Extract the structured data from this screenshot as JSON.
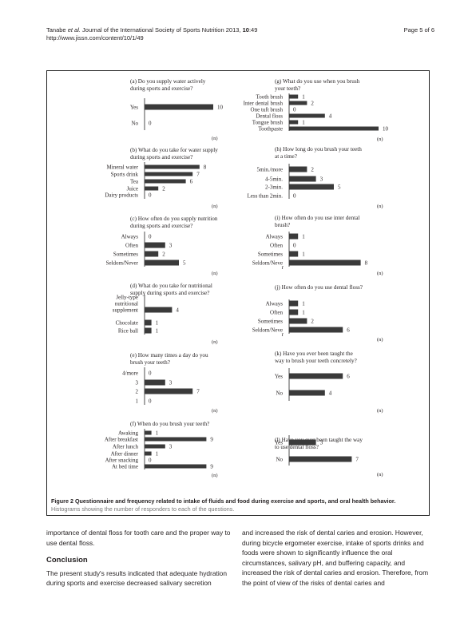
{
  "header": {
    "citation_authors": "Tanabe ",
    "citation_etal": "et al.",
    "citation_journal": " Journal of the International Society of Sports Nutrition",
    "citation_year": " 2013, ",
    "citation_volume": "10",
    "citation_article": ":49",
    "url": "http://www.jissn.com/content/10/1/49",
    "page": "Page 5 of 6"
  },
  "figure": {
    "caption_title": "Figure 2 Questionnaire and frequency related to intake of fluids and food during exercise and sports, and oral health behavior.",
    "caption_sub": "Histograms showing the number of responders to each of the questions.",
    "unit_label": "(n)",
    "colors": {
      "bar": "#3a3a3a",
      "axis": "#222222"
    }
  },
  "chart_data": [
    {
      "type": "bar",
      "title": [
        "(a) Do you supply water actively",
        "during sports and exercise?"
      ],
      "categories": [
        [
          "Yes"
        ],
        [
          "No"
        ]
      ],
      "values": [
        10,
        0
      ],
      "xlabel": "(n)",
      "xlim": [
        0,
        10
      ]
    },
    {
      "type": "bar",
      "title": [
        "(b) What do you take for water supply",
        "during sports and exercise?"
      ],
      "categories": [
        [
          "Mineral water"
        ],
        [
          "Sports drink"
        ],
        [
          "Tea"
        ],
        [
          "Juice"
        ],
        [
          "Dairy products"
        ]
      ],
      "values": [
        8,
        7,
        6,
        2,
        0
      ],
      "xlabel": "(n)",
      "xlim": [
        0,
        10
      ]
    },
    {
      "type": "bar",
      "title": [
        "(c) How often do you supply nutrition",
        "during sports and exercise?"
      ],
      "categories": [
        [
          "Always"
        ],
        [
          "Often"
        ],
        [
          "Sometimes"
        ],
        [
          "Seldom/Never"
        ]
      ],
      "values": [
        0,
        3,
        2,
        5
      ],
      "xlabel": "(n)",
      "xlim": [
        0,
        10
      ]
    },
    {
      "type": "bar",
      "title": [
        "(d) What do you take for nutritional",
        "supply during sports and exercise?"
      ],
      "categories": [
        [
          "Jelly-type",
          "nutritional",
          "supplement"
        ],
        [
          "Chocolate"
        ],
        [
          "Rice ball"
        ]
      ],
      "values": [
        4,
        1,
        1
      ],
      "xlabel": "(n)",
      "xlim": [
        0,
        10
      ]
    },
    {
      "type": "bar",
      "title": [
        "(e) How many times a day do you",
        "brush your teeth?"
      ],
      "categories": [
        [
          "4/more"
        ],
        [
          "3"
        ],
        [
          "2"
        ],
        [
          "1"
        ]
      ],
      "values": [
        0,
        3,
        7,
        0
      ],
      "xlabel": "(n)",
      "xlim": [
        0,
        10
      ]
    },
    {
      "type": "bar",
      "title": [
        "(f) When do you brush your teeth?"
      ],
      "categories": [
        [
          "Awaking"
        ],
        [
          "After breakfast"
        ],
        [
          "After lunch"
        ],
        [
          "After dinner"
        ],
        [
          "After snacking"
        ],
        [
          "At bed time"
        ]
      ],
      "values": [
        1,
        9,
        3,
        1,
        0,
        9
      ],
      "xlabel": "(n)",
      "xlim": [
        0,
        10
      ]
    },
    {
      "type": "bar",
      "title": [
        "(g) What do you use when you brush",
        "your teeth?"
      ],
      "categories": [
        [
          "Tooth brush"
        ],
        [
          "Inter dental brush"
        ],
        [
          "One tuft brush"
        ],
        [
          "Dental floss"
        ],
        [
          "Tongue brush"
        ],
        [
          "Toothpaste"
        ]
      ],
      "values": [
        1,
        2,
        0,
        4,
        1,
        10
      ],
      "xlabel": "(n)",
      "xlim": [
        0,
        10
      ]
    },
    {
      "type": "bar",
      "title": [
        "(h) How long do you brush your teeth",
        "at a time?"
      ],
      "categories": [
        [
          "5min./more"
        ],
        [
          "4-5min."
        ],
        [
          "2-3min."
        ],
        [
          "Less than 2min."
        ]
      ],
      "values": [
        2,
        3,
        5,
        0
      ],
      "xlabel": "(n)",
      "xlim": [
        0,
        10
      ]
    },
    {
      "type": "bar",
      "title": [
        "(i) How often do you use inter dental",
        "brush?"
      ],
      "categories": [
        [
          "Always"
        ],
        [
          "Often"
        ],
        [
          "Sometimes"
        ],
        [
          "Seldom/Neve",
          "r"
        ]
      ],
      "values": [
        1,
        0,
        1,
        8
      ],
      "xlabel": "(n)",
      "xlim": [
        0,
        10
      ]
    },
    {
      "type": "bar",
      "title": [
        "(j) How often do you use dental floss?"
      ],
      "categories": [
        [
          "Always"
        ],
        [
          "Often"
        ],
        [
          "Sometimes"
        ],
        [
          "Seldom/Neve",
          "r"
        ]
      ],
      "values": [
        1,
        1,
        2,
        6
      ],
      "xlabel": "(n)",
      "xlim": [
        0,
        10
      ]
    },
    {
      "type": "bar",
      "title": [
        "(k) Have you ever been taught the",
        "way to brush your teeth concretely?"
      ],
      "categories": [
        [
          "Yes"
        ],
        [
          "No"
        ]
      ],
      "values": [
        6,
        4
      ],
      "xlabel": "(n)",
      "xlim": [
        0,
        10
      ]
    },
    {
      "type": "bar",
      "title": [
        "(l) Have you ever been taught the way",
        "to use dental floss?"
      ],
      "categories": [
        [
          "Yes"
        ],
        [
          "No"
        ]
      ],
      "values": [
        3,
        7
      ],
      "xlabel": "(n)",
      "xlim": [
        0,
        10
      ]
    }
  ],
  "body": {
    "left_para": "importance of dental floss for tooth care and the proper way to use dental floss.",
    "section_title": "Conclusion",
    "conclusion_para": "The present study's results indicated that adequate hydration during sports and exercise decreased salivary secretion",
    "right_para": "and increased the risk of dental caries and erosion. However, during bicycle ergometer exercise, intake of sports drinks and foods were shown to significantly influence the oral circumstances, salivary pH, and buffering capacity, and increased the risk of dental caries and erosion. Therefore, from the point of view of the risks of dental caries and"
  }
}
